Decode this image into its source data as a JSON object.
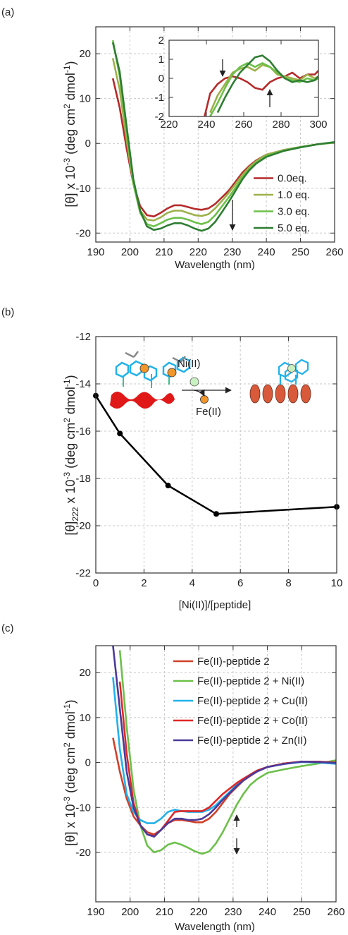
{
  "chart_data": [
    {
      "type": "line",
      "panel_label": "(a)",
      "x_label": "Wavelength (nm)",
      "y_label": [
        "[θ] x 10",
        "-3",
        " (deg cm",
        "2",
        " dmol",
        "-1",
        ")"
      ],
      "xlim": [
        190,
        260
      ],
      "xticks": [
        190,
        200,
        210,
        220,
        230,
        240,
        250,
        260
      ],
      "ylim": [
        -22,
        26
      ],
      "yticks": [
        -20,
        -10,
        0,
        10,
        20
      ],
      "grid": true,
      "legend": "lower right",
      "x": [
        195,
        197,
        199,
        201,
        203,
        205,
        207,
        209,
        211,
        213,
        215,
        217,
        219,
        221,
        223,
        225,
        227,
        229,
        231,
        233,
        235,
        237,
        240,
        245,
        250,
        255,
        260
      ],
      "series": [
        {
          "name": "0.0eq.",
          "color": "#b52a2a",
          "values": [
            14.5,
            8,
            -1,
            -9,
            -14,
            -16,
            -16.3,
            -15.5,
            -14.5,
            -13.8,
            -13.8,
            -14.2,
            -14.6,
            -14.8,
            -14.5,
            -13.5,
            -12,
            -10.5,
            -8.5,
            -6.5,
            -5,
            -3.8,
            -2.5,
            -1.5,
            -0.8,
            -0.2,
            0.2
          ]
        },
        {
          "name": "1.0 eq.",
          "color": "#9cb04a",
          "values": [
            19,
            12,
            1,
            -9,
            -15,
            -17,
            -17.2,
            -16.5,
            -15.5,
            -15,
            -15,
            -15.5,
            -16,
            -16.2,
            -15.8,
            -14.5,
            -12.8,
            -11,
            -9,
            -7,
            -5.3,
            -4,
            -2.5,
            -1.5,
            -0.8,
            -0.2,
            0.2
          ]
        },
        {
          "name": "3.0 eq.",
          "color": "#6cc04a",
          "values": [
            23,
            15,
            3,
            -9,
            -15.5,
            -18,
            -18.5,
            -17.8,
            -17,
            -16.6,
            -16.6,
            -17,
            -17.6,
            -18,
            -17.5,
            -16,
            -14,
            -12,
            -9.8,
            -7.6,
            -5.8,
            -4.3,
            -2.8,
            -1.6,
            -0.8,
            -0.2,
            0.2
          ]
        },
        {
          "name": "5.0 eq.",
          "color": "#2e7d32",
          "values": [
            22.5,
            16,
            4,
            -8,
            -15,
            -18.5,
            -19.3,
            -19,
            -18.3,
            -17.8,
            -17.8,
            -18.3,
            -19,
            -19.5,
            -19,
            -17.5,
            -15.3,
            -13,
            -10.5,
            -8,
            -6,
            -4.5,
            -3,
            -1.7,
            -0.9,
            -0.2,
            0.3
          ]
        }
      ]
    },
    {
      "type": "line",
      "xlim": [
        220,
        300
      ],
      "xticks": [
        220,
        240,
        260,
        280,
        300
      ],
      "ylim": [
        -2,
        2
      ],
      "yticks": [
        -2,
        -1,
        0,
        1,
        2
      ],
      "grid": false,
      "x": [
        239,
        242,
        246,
        250,
        254,
        258,
        262,
        266,
        270,
        274,
        278,
        282,
        286,
        290,
        294,
        298,
        300
      ],
      "series": [
        {
          "color": "#b52a2a",
          "values": [
            -2,
            -0.8,
            -0.3,
            0,
            0.1,
            0,
            -0.2,
            -0.5,
            -0.6,
            -0.2,
            0,
            0.1,
            0.3,
            0,
            0.2,
            0.2,
            0.4
          ]
        },
        {
          "color": "#9cb04a",
          "values": [
            null,
            -1.8,
            -0.9,
            -0.3,
            0.3,
            0.5,
            0.6,
            0.4,
            0.7,
            0.6,
            0.2,
            0.1,
            0,
            -0.1,
            0.2,
            0,
            0.1
          ]
        },
        {
          "color": "#6cc04a",
          "values": [
            null,
            -2,
            -1.3,
            -0.5,
            0.2,
            0.6,
            0.8,
            0.6,
            0.8,
            0.6,
            0.3,
            0,
            -0.1,
            -0.2,
            0,
            -0.1,
            0
          ]
        },
        {
          "color": "#2e7d32",
          "values": [
            null,
            null,
            -1.8,
            -1,
            -0.3,
            0.3,
            0.7,
            1.1,
            1.2,
            0.9,
            0.4,
            0,
            -0.2,
            -0.1,
            -0.2,
            -0.1,
            0.1
          ]
        }
      ]
    },
    {
      "type": "line",
      "panel_label": "(b)",
      "x_label": "[Ni(II)]/[peptide]",
      "y_label": [
        "[θ]",
        "222",
        " x 10",
        "-3",
        " (deg cm",
        "2",
        " dmol",
        "-1",
        ")"
      ],
      "annotations": [
        "Ni(II)",
        "Fe(II)"
      ],
      "xlim": [
        0,
        10
      ],
      "xticks": [
        0,
        2,
        4,
        6,
        8,
        10
      ],
      "ylim": [
        -22,
        -12
      ],
      "yticks": [
        -22,
        -20,
        -18,
        -16,
        -14,
        -12
      ],
      "grid": true,
      "markers": true,
      "x": [
        0,
        1,
        3,
        5,
        10
      ],
      "values": [
        -14.5,
        -16.1,
        -18.3,
        -19.5,
        -19.2
      ],
      "color": "#000000"
    },
    {
      "type": "line",
      "panel_label": "(c)",
      "x_label": "Wavelength (nm)",
      "y_label": [
        "[θ] x 10",
        "-3",
        " (deg cm",
        "2",
        " dmol",
        "-1",
        ")"
      ],
      "xlim": [
        190,
        260
      ],
      "xticks": [
        190,
        200,
        210,
        220,
        230,
        240,
        250,
        260
      ],
      "ylim": [
        -31,
        26
      ],
      "yticks": [
        -20,
        -10,
        0,
        10,
        20
      ],
      "grid": true,
      "legend": "upper center",
      "x": [
        195,
        197,
        199,
        201,
        203,
        205,
        207,
        209,
        211,
        213,
        215,
        217,
        219,
        221,
        223,
        225,
        227,
        229,
        231,
        233,
        235,
        237,
        240,
        245,
        250,
        255,
        260
      ],
      "series": [
        {
          "name": "Fe(II)-peptide 2",
          "color": "#d0402a",
          "values": [
            5.5,
            -2,
            -8,
            -12,
            -14,
            -15.5,
            -16,
            -15,
            -13.5,
            -12.8,
            -12.8,
            -13,
            -13.3,
            -13.3,
            -12.5,
            -11,
            -9,
            -7,
            -5.5,
            -4,
            -3,
            -2,
            -1,
            -0.2,
            0.2,
            0,
            0
          ]
        },
        {
          "name": "Fe(II)-peptide 2 + Ni(II)",
          "color": "#6cc04a",
          "values": [
            null,
            25,
            8,
            -6,
            -14,
            -18.5,
            -20,
            -19.5,
            -18.3,
            -17.8,
            -18.3,
            -19,
            -19.8,
            -20.3,
            -19.8,
            -18,
            -15.5,
            -12.5,
            -9.5,
            -7,
            -5,
            -3.7,
            -2.3,
            -1.5,
            -0.8,
            -0.2,
            0.5
          ]
        },
        {
          "name": "Fe(II)-peptide 2 + Cu(II)",
          "color": "#22b2ea",
          "values": [
            19,
            3,
            -7,
            -11,
            -12.8,
            -13.5,
            -13.5,
            -12.5,
            -11,
            -10.5,
            -10.8,
            -11,
            -11,
            -11,
            -10.5,
            -9.5,
            -8,
            -6.5,
            -5,
            -3.8,
            -2.7,
            -1.8,
            -1,
            -0.3,
            0.1,
            0,
            -0.3
          ]
        },
        {
          "name": "Fe(II)-peptide 2 + Co(II)",
          "color": "#e02828",
          "values": [
            null,
            18,
            2,
            -9,
            -14,
            -16,
            -16.3,
            -15,
            -13,
            -11,
            -10.8,
            -10.8,
            -10.8,
            -10.8,
            -10,
            -8.5,
            -7,
            -5.8,
            -4.6,
            -3.6,
            -2.7,
            -1.8,
            -1,
            -0.2,
            0.2,
            0.2,
            0
          ]
        },
        {
          "name": "Fe(II)-peptide 2 + Zn(II)",
          "color": "#4a3a9a",
          "values": [
            26,
            12,
            -2,
            -10,
            -14,
            -16,
            -16.5,
            -15,
            -13.5,
            -12.5,
            -12.5,
            -12.8,
            -12.8,
            -12.5,
            -11.5,
            -10,
            -8.3,
            -6.8,
            -5.3,
            -4,
            -2.9,
            -2,
            -1,
            -0.3,
            0.2,
            0.1,
            -0.1
          ]
        }
      ]
    }
  ]
}
